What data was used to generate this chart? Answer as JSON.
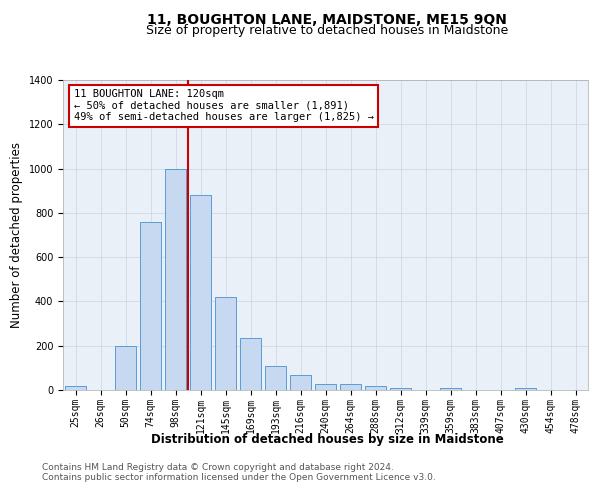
{
  "title": "11, BOUGHTON LANE, MAIDSTONE, ME15 9QN",
  "subtitle": "Size of property relative to detached houses in Maidstone",
  "xlabel": "Distribution of detached houses by size in Maidstone",
  "ylabel": "Number of detached properties",
  "categories": [
    "25sqm",
    "26sqm",
    "50sqm",
    "74sqm",
    "98sqm",
    "121sqm",
    "145sqm",
    "169sqm",
    "193sqm",
    "216sqm",
    "240sqm",
    "264sqm",
    "288sqm",
    "312sqm",
    "339sqm",
    "359sqm",
    "383sqm",
    "407sqm",
    "430sqm",
    "454sqm",
    "478sqm"
  ],
  "values": [
    20,
    0,
    200,
    760,
    1000,
    880,
    420,
    235,
    110,
    70,
    25,
    25,
    20,
    10,
    0,
    10,
    0,
    0,
    10,
    0,
    0
  ],
  "bar_color": "#c6d9f0",
  "bar_edge_color": "#5b9bd5",
  "red_line_x": 4.5,
  "annotation_text": "11 BOUGHTON LANE: 120sqm\n← 50% of detached houses are smaller (1,891)\n49% of semi-detached houses are larger (1,825) →",
  "annotation_box_color": "#ffffff",
  "annotation_box_edge_color": "#cc0000",
  "ylim": [
    0,
    1400
  ],
  "yticks": [
    0,
    200,
    400,
    600,
    800,
    1000,
    1200,
    1400
  ],
  "plot_bg_color": "#eaf0f8",
  "footer1": "Contains HM Land Registry data © Crown copyright and database right 2024.",
  "footer2": "Contains public sector information licensed under the Open Government Licence v3.0.",
  "title_fontsize": 10,
  "subtitle_fontsize": 9,
  "axis_label_fontsize": 8.5,
  "tick_fontsize": 7,
  "footer_fontsize": 6.5,
  "annot_fontsize": 7.5
}
